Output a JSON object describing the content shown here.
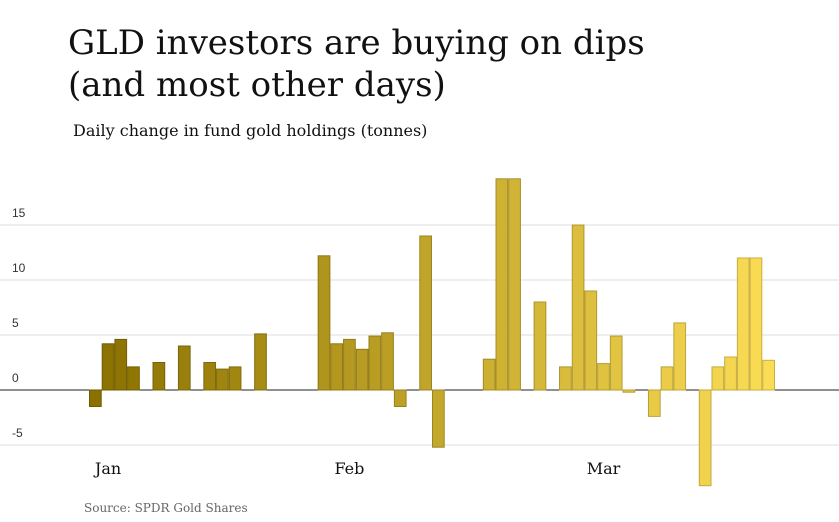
{
  "chart_data": {
    "type": "bar",
    "title": "GLD investors are buying on dips",
    "title_line2": "(and most other days)",
    "subtitle": "Daily change in fund gold holdings (tonnes)",
    "source": "Source: SPDR Gold Shares",
    "categories": [
      null,
      "Jan",
      null,
      null,
      null,
      null,
      null,
      null,
      null,
      null,
      null,
      null,
      null,
      null,
      null,
      null,
      null,
      null,
      null,
      null,
      "Feb",
      null,
      null,
      null,
      null,
      null,
      null,
      null,
      null,
      null,
      null,
      null,
      null,
      null,
      null,
      null,
      null,
      null,
      null,
      null,
      "Mar",
      null,
      null,
      null,
      null,
      null,
      null,
      null,
      null,
      null,
      null,
      null,
      null,
      null
    ],
    "values": [
      -1.5,
      4.2,
      4.6,
      2.1,
      null,
      2.5,
      null,
      4.0,
      null,
      2.5,
      1.9,
      2.1,
      null,
      5.1,
      null,
      null,
      null,
      null,
      12.2,
      4.2,
      4.6,
      3.7,
      4.9,
      5.2,
      -1.5,
      null,
      14.0,
      -5.2,
      null,
      null,
      null,
      2.8,
      19.2,
      19.2,
      null,
      8.0,
      null,
      2.1,
      15.0,
      9.0,
      2.4,
      4.9,
      -0.2,
      null,
      -2.4,
      2.1,
      6.1,
      null,
      -8.7,
      2.1,
      3.0,
      12.0,
      12.0,
      2.7
    ],
    "gradient": [
      "#8a7100",
      "#fbdc55"
    ],
    "ylim": [
      -9,
      20
    ],
    "yticks": [
      -5,
      0,
      5,
      10,
      15
    ],
    "grid": true
  }
}
